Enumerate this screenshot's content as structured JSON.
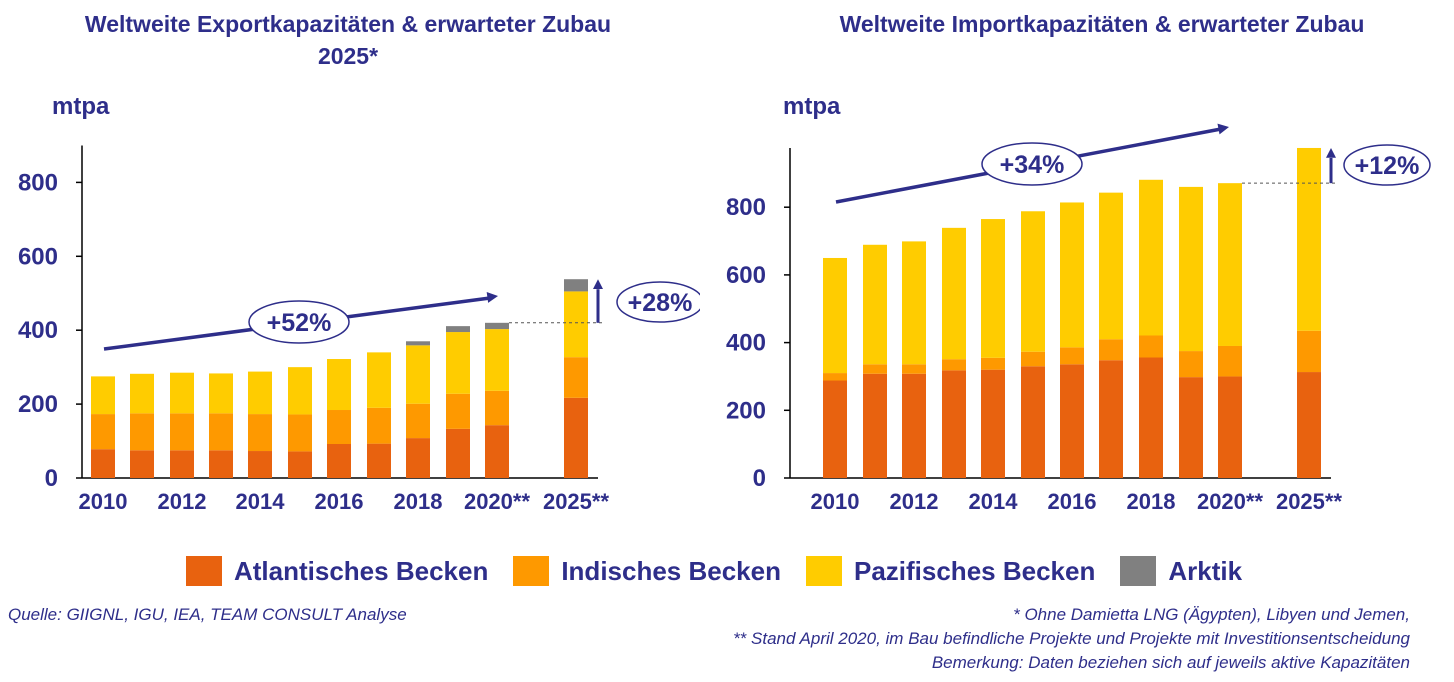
{
  "legend": [
    {
      "label": "Atlantisches Becken",
      "color": "#e8620f"
    },
    {
      "label": "Indisches Becken",
      "color": "#fe9900"
    },
    {
      "label": "Pazifisches Becken",
      "color": "#ffcc00"
    },
    {
      "label": "Arktik",
      "color": "#808080"
    }
  ],
  "source": "Quelle: GIIGNL, IGU, IEA, TEAM CONSULT Analyse",
  "footnotes": [
    "* Ohne Damietta LNG (Ägypten), Libyen und Jemen,",
    "** Stand April 2020, im Bau befindliche Projekte und Projekte mit Investitionsentscheidung",
    "Bemerkung: Daten beziehen sich auf jeweils aktive Kapazitäten"
  ],
  "chart_data": [
    {
      "type": "bar",
      "stacked": true,
      "title": "Weltweite Exportkapazitäten & erwarteter Zubau 2025*",
      "ylabel": "mtpa",
      "ylim": [
        0,
        900
      ],
      "yticks": [
        0,
        200,
        400,
        600,
        800
      ],
      "categories": [
        "2010",
        "2011",
        "2012",
        "2013",
        "2014",
        "2015",
        "2016",
        "2017",
        "2018",
        "2019",
        "2020**",
        "2025**"
      ],
      "tick_labels": [
        "2010",
        "",
        "2012",
        "",
        "2014",
        "",
        "2016",
        "",
        "2018",
        "",
        "2020**",
        "2025**"
      ],
      "series": [
        {
          "name": "Atlantisches Becken",
          "values": [
            78,
            75,
            75,
            75,
            73,
            72,
            92,
            93,
            108,
            133,
            143,
            217
          ]
        },
        {
          "name": "Indisches Becken",
          "values": [
            95,
            100,
            100,
            100,
            100,
            100,
            92,
            97,
            93,
            95,
            93,
            110
          ]
        },
        {
          "name": "Pazifisches Becken",
          "values": [
            102,
            107,
            110,
            108,
            115,
            128,
            138,
            150,
            158,
            167,
            167,
            178
          ]
        },
        {
          "name": "Arktik",
          "values": [
            0,
            0,
            0,
            0,
            0,
            0,
            0,
            0,
            11,
            16,
            17,
            33
          ]
        }
      ],
      "annotations": {
        "trend_label": "+52%",
        "growth_label": "+28%"
      }
    },
    {
      "type": "bar",
      "stacked": true,
      "title": "Weltweite Importkapazitäten & erwarteter Zubau",
      "ylabel": "mtpa",
      "ylim": [
        0,
        975
      ],
      "yticks": [
        0,
        200,
        400,
        600,
        800
      ],
      "categories": [
        "2010",
        "2011",
        "2012",
        "2013",
        "2014",
        "2015",
        "2016",
        "2017",
        "2018",
        "2019",
        "2020**",
        "2025**"
      ],
      "tick_labels": [
        "2010",
        "",
        "2012",
        "",
        "2014",
        "",
        "2016",
        "",
        "2018",
        "",
        "2020**",
        "2025**"
      ],
      "series": [
        {
          "name": "Atlantisches Becken",
          "values": [
            288,
            308,
            308,
            318,
            320,
            330,
            336,
            348,
            356,
            298,
            300,
            313
          ]
        },
        {
          "name": "Indisches Becken",
          "values": [
            22,
            28,
            28,
            33,
            35,
            43,
            50,
            62,
            65,
            77,
            90,
            122
          ]
        },
        {
          "name": "Pazifisches Becken",
          "values": [
            340,
            353,
            363,
            388,
            410,
            415,
            428,
            433,
            460,
            485,
            481,
            540
          ]
        },
        {
          "name": "Arktik",
          "values": [
            0,
            0,
            0,
            0,
            0,
            0,
            0,
            0,
            0,
            0,
            0,
            0
          ]
        }
      ],
      "annotations": {
        "trend_label": "+34%",
        "growth_label": "+12%"
      }
    }
  ]
}
